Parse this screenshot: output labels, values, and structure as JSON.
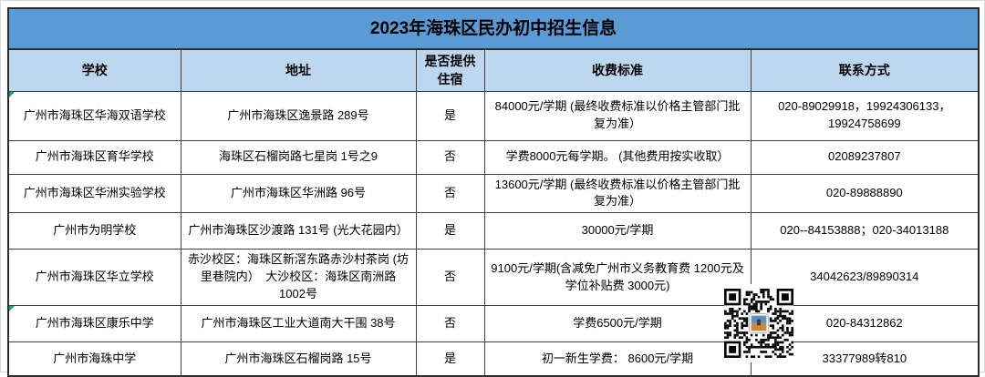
{
  "page": {
    "title": "2023年海珠区民办初中招生信息"
  },
  "table": {
    "headers": [
      "学校",
      "地址",
      "是否提供住宿",
      "收费标准",
      "联系方式"
    ],
    "rows": [
      {
        "school": "广州市海珠区华海双语学校",
        "address": "广州市海珠区逸景路 289号",
        "boarding": "是",
        "fee": "84000元/学期 (最终收费标准以价格主管部门批复为准）",
        "contact": "020-89029918，19924306133，19924758699"
      },
      {
        "school": "广州市海珠区育华学校",
        "address": "海珠区石榴岗路七星岗 1号之9",
        "boarding": "否",
        "fee": "学费8000元每学期。 (其他费用按实收取）",
        "contact": "02089237807"
      },
      {
        "school": "广州市海珠区华洲实验学校",
        "address": "广州市海珠区华洲路 96号",
        "boarding": "否",
        "fee": "13600元/学期 (最终收费标准以价格主管部门批复为准）",
        "contact": "020-89888890"
      },
      {
        "school": "广州市为明学校",
        "address": "广州市海珠区沙渡路 131号 (光大花园内）",
        "boarding": "是",
        "fee": "30000元/学期",
        "contact": "020--84153888；020-34013188"
      },
      {
        "school": "广州市海珠区华立学校",
        "address": "赤沙校区：海珠区新滘东路赤沙村茶岗 (坊里巷院内）　大沙校区：海珠区南洲路 1002号",
        "boarding": "否",
        "fee": "9100元/学期(含减免广州市义务教育费 1200元及学位补贴费 3000元)",
        "contact": "34042623/89890314"
      },
      {
        "school": "广州市海珠区康乐中学",
        "address": "广州市海珠区工业大道南大干围 38号",
        "boarding": "否",
        "fee": "学费6500元/学期",
        "contact": "020-84312862"
      },
      {
        "school": "广州市海珠中学",
        "address": "广州市海珠区石榴岗路 15号",
        "boarding": "是",
        "fee": "初一新生学费： 8600元/学期",
        "contact": "33377989转810"
      }
    ]
  },
  "icons": {
    "qr": "qr-code"
  },
  "colors": {
    "title_bg": "#5b9bd5",
    "header_bg": "#bdd7ee",
    "grid_border": "#404040",
    "flag_green": "#21a366"
  }
}
